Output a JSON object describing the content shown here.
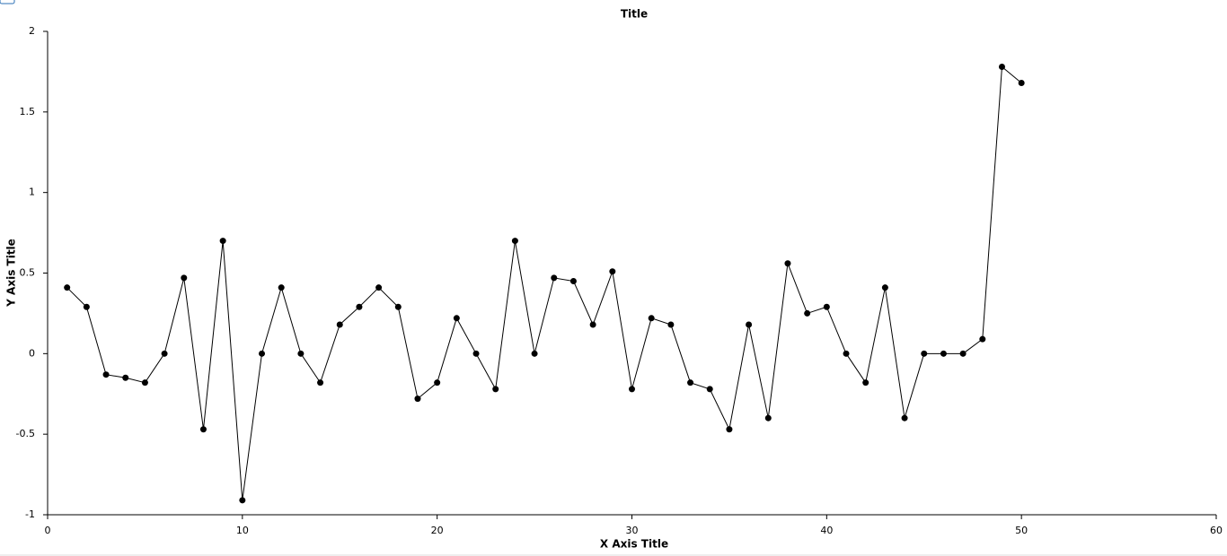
{
  "chart_data": {
    "type": "line",
    "title": "Title",
    "x_label": "X Axis Title",
    "y_label": "Y Axis Title",
    "x": [
      1,
      2,
      3,
      4,
      5,
      6,
      7,
      8,
      9,
      10,
      11,
      12,
      13,
      14,
      15,
      16,
      17,
      18,
      19,
      20,
      21,
      22,
      23,
      24,
      25,
      26,
      27,
      28,
      29,
      30,
      31,
      32,
      33,
      34,
      35,
      36,
      37,
      38,
      39,
      40,
      41,
      42,
      43,
      44,
      45,
      46,
      47,
      48,
      49,
      50
    ],
    "series": [
      {
        "color": "#000000",
        "values": [
          0.41,
          0.29,
          -0.13,
          -0.15,
          -0.18,
          0,
          0.47,
          -0.47,
          0.7,
          -0.91,
          0,
          0.41,
          0,
          -0.18,
          0.18,
          0.29,
          0.41,
          0.29,
          -0.28,
          -0.18,
          0.22,
          0,
          -0.22,
          0.7,
          0,
          0.47,
          0.45,
          0.18,
          0.51,
          -0.22,
          0.22,
          0.18,
          -0.18,
          -0.22,
          -0.47,
          0.18,
          -0.4,
          0.56,
          0.25,
          0.29,
          0,
          -0.18,
          0.41,
          -0.4,
          0,
          0,
          0,
          0.09,
          1.78,
          1.68
        ]
      }
    ],
    "xlim": [
      0,
      60
    ],
    "xticks": [
      0,
      10,
      20,
      30,
      40,
      50,
      60
    ],
    "ylim": [
      -1,
      2
    ],
    "yticks": [
      -1,
      -0.5,
      0,
      0.5,
      1,
      1.5,
      2
    ]
  }
}
